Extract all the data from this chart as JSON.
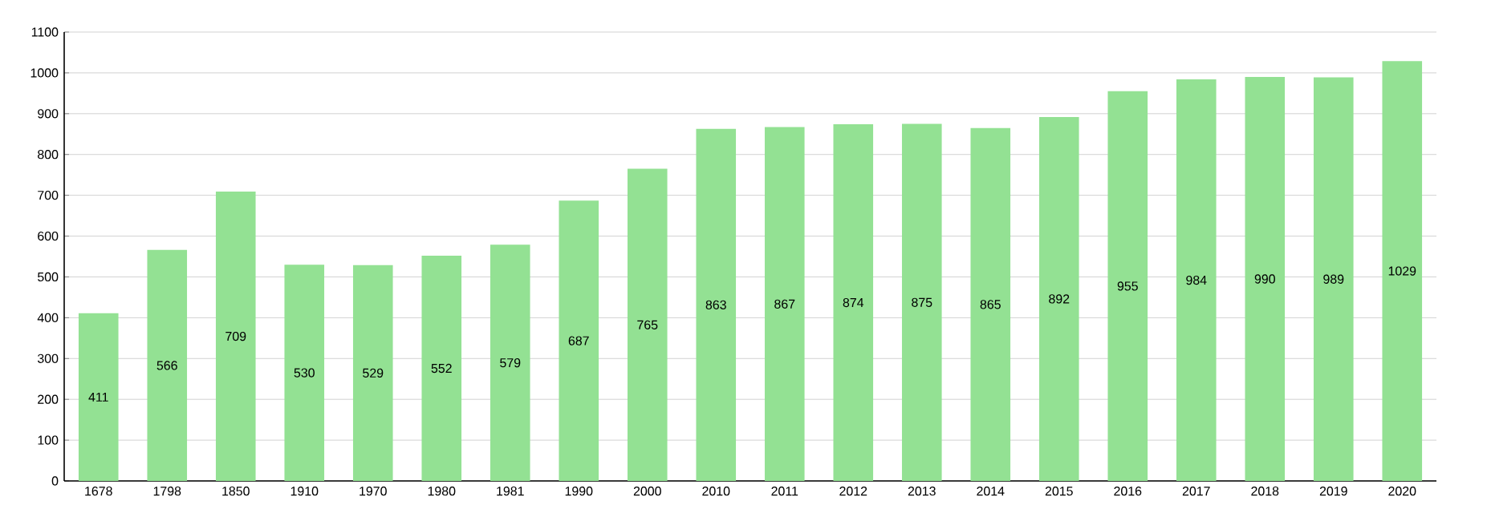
{
  "chart_data": {
    "type": "bar",
    "categories": [
      "1678",
      "1798",
      "1850",
      "1910",
      "1970",
      "1980",
      "1981",
      "1990",
      "2000",
      "2010",
      "2011",
      "2012",
      "2013",
      "2014",
      "2015",
      "2016",
      "2017",
      "2018",
      "2019",
      "2020"
    ],
    "values": [
      411,
      566,
      709,
      530,
      529,
      552,
      579,
      687,
      765,
      863,
      867,
      874,
      875,
      865,
      892,
      955,
      984,
      990,
      989,
      1029
    ],
    "color": "#93e193",
    "ylim": [
      0,
      1100
    ],
    "yticks": [
      0,
      100,
      200,
      300,
      400,
      500,
      600,
      700,
      800,
      900,
      1000,
      1100
    ],
    "grid": "y",
    "data_labels": true
  }
}
